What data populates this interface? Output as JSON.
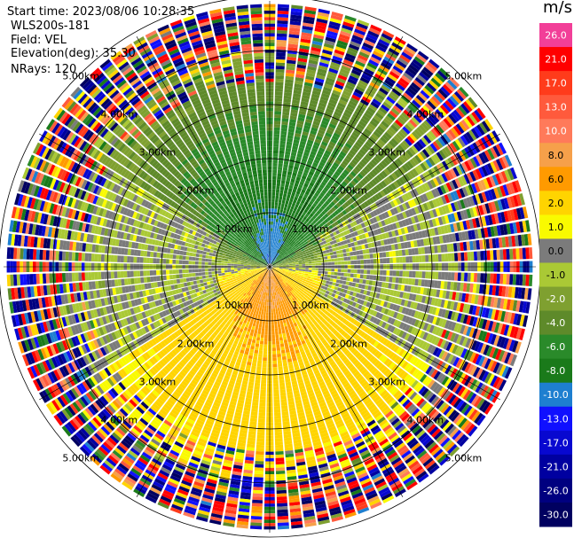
{
  "info": {
    "start_time": "Start time: 2023/08/06 10:28:35",
    "site": "WLS200s-181",
    "field": "Field: VEL",
    "elevation": "Elevation(deg): 35.30",
    "nrays": "NRays: 120"
  },
  "chart_data": {
    "type": "heatmap",
    "subtype": "radar-ppi",
    "field": "VEL",
    "units": "m/s",
    "nrays": 120,
    "elevation_deg": 35.3,
    "max_range_km": 6.0,
    "ring_labels": [
      "1.00km",
      "2.00km",
      "3.00km",
      "4.00km",
      "5.00km"
    ],
    "colorbar": {
      "label": "m/s",
      "ticks": [
        "26.0",
        "21.0",
        "17.0",
        "13.0",
        "10.0",
        "8.0",
        "6.0",
        "2.0",
        "1.0",
        "0.0",
        "-1.0",
        "-2.0",
        "-4.0",
        "-6.0",
        "-8.0",
        "-10.0",
        "-13.0",
        "-17.0",
        "-21.0",
        "-26.0",
        "-30.0"
      ],
      "colors": [
        "#f23f98",
        "#ff0000",
        "#ff3b1b",
        "#ff5a3c",
        "#ff7a5a",
        "#f6a04a",
        "#ff9a00",
        "#ffd400",
        "#f9fa00",
        "#7b7b7b",
        "#aac935",
        "#7fa030",
        "#5e8a2a",
        "#2a8a2a",
        "#1a7a1a",
        "#1e7fd0",
        "#1010ff",
        "#0808d0",
        "#0000a0",
        "#000080",
        "#000060"
      ]
    },
    "dominant_regions": [
      {
        "azimuth_deg": 0,
        "range_km": 0.5,
        "value_ms": -9
      },
      {
        "azimuth_deg": 0,
        "range_km": 1.5,
        "value_ms": -6
      },
      {
        "azimuth_deg": 180,
        "range_km": 0.8,
        "value_ms": 8
      },
      {
        "azimuth_deg": 180,
        "range_km": 2.2,
        "value_ms": 5
      },
      {
        "azimuth_deg": 180,
        "range_km": 3.2,
        "value_ms": 2
      },
      {
        "azimuth_deg": 90,
        "range_km": 1.5,
        "value_ms": 0
      },
      {
        "azimuth_deg": 270,
        "range_km": 1.5,
        "value_ms": 0
      }
    ]
  }
}
